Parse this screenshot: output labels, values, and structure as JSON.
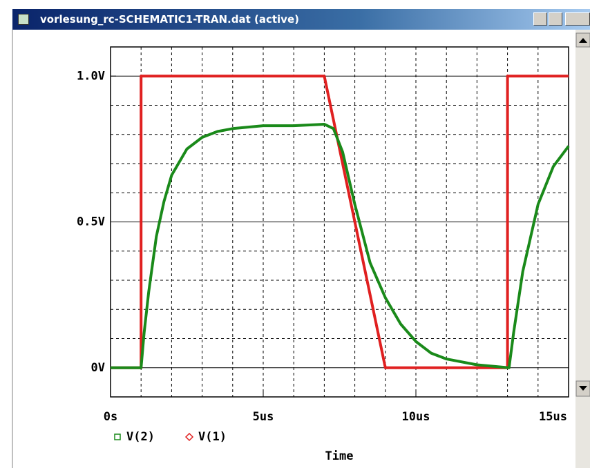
{
  "window": {
    "title": "vorlesung_rc-SCHEMATIC1-TRAN.dat (active)"
  },
  "chart_data": {
    "type": "line",
    "xlabel": "Time",
    "xlim": [
      0,
      15
    ],
    "xticks": [
      {
        "value": 0,
        "label": "0s"
      },
      {
        "value": 5,
        "label": "5us"
      },
      {
        "value": 10,
        "label": "10us"
      },
      {
        "value": 15,
        "label": "15us"
      }
    ],
    "xminorticks": [
      1,
      2,
      3,
      4,
      6,
      7,
      8,
      9,
      11,
      12,
      13,
      14
    ],
    "ylim": [
      -0.1,
      1.1
    ],
    "yticks": [
      {
        "value": 0,
        "label": "0V"
      },
      {
        "value": 0.5,
        "label": "0.5V"
      },
      {
        "value": 1,
        "label": "1.0V"
      }
    ],
    "yminorticks": [
      0.1,
      0.2,
      0.3,
      0.4,
      0.6,
      0.7,
      0.8,
      0.9
    ],
    "grid": true,
    "series": [
      {
        "name": "V(2)",
        "color": "#1a8a1a",
        "marker": "square",
        "x": [
          0,
          1,
          1.1,
          1.25,
          1.5,
          1.75,
          2,
          2.5,
          3,
          3.5,
          4,
          5,
          6,
          7,
          7.3,
          7.6,
          8,
          8.5,
          9,
          9.5,
          10,
          10.5,
          11,
          12,
          13.05,
          13.2,
          13.5,
          14,
          14.5,
          15
        ],
        "values": [
          0,
          0,
          0.12,
          0.26,
          0.45,
          0.57,
          0.66,
          0.75,
          0.79,
          0.81,
          0.82,
          0.83,
          0.83,
          0.835,
          0.82,
          0.74,
          0.56,
          0.36,
          0.24,
          0.15,
          0.09,
          0.05,
          0.03,
          0.01,
          0,
          0.12,
          0.33,
          0.56,
          0.69,
          0.76
        ]
      },
      {
        "name": "V(1)",
        "color": "#e02020",
        "marker": "diamond",
        "x": [
          0,
          1,
          1,
          7,
          9,
          13,
          13,
          15
        ],
        "values": [
          0,
          0,
          1,
          1,
          0,
          0,
          1,
          1
        ]
      }
    ]
  }
}
